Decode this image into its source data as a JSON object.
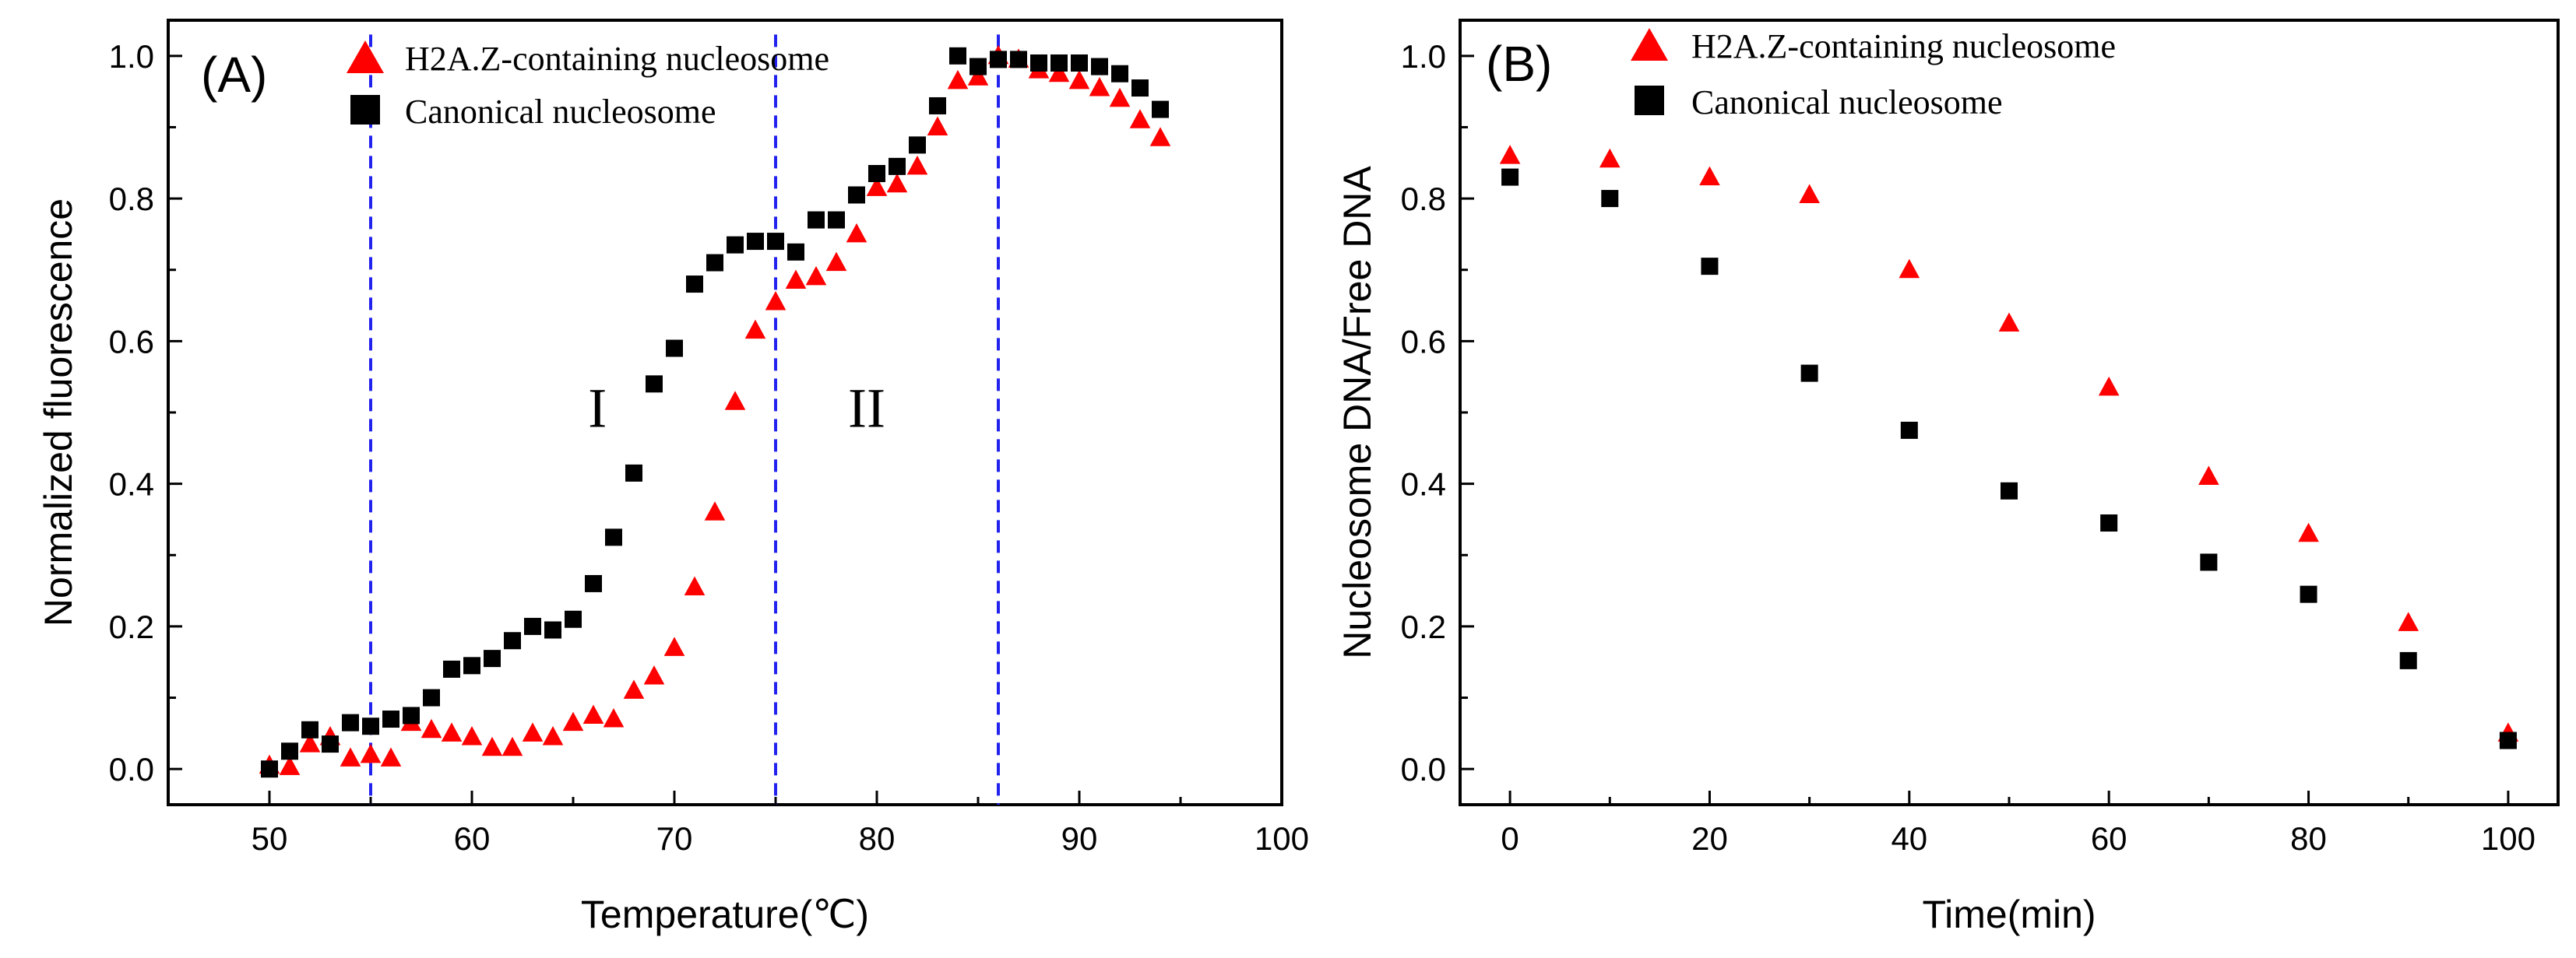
{
  "chart_data": [
    {
      "type": "scatter",
      "panel_label": "(A)",
      "title": "",
      "xlabel": "Temperature(℃)",
      "ylabel": "Normalized fluorescence",
      "xlim": [
        45,
        100
      ],
      "ylim": [
        -0.05,
        1.05
      ],
      "xticks": [
        "50",
        "60",
        "70",
        "80",
        "90",
        "100"
      ],
      "yticks": [
        "0.0",
        "0.2",
        "0.4",
        "0.6",
        "0.8",
        "1.0"
      ],
      "grid": false,
      "legend_position": "top-left",
      "reference_lines_x": [
        55,
        75,
        86
      ],
      "region_labels": [
        {
          "text": "I",
          "x": 66.2,
          "y": 0.48
        },
        {
          "text": "II",
          "x": 79.5,
          "y": 0.48
        }
      ],
      "series": [
        {
          "name": "H2A.Z-containing nucleosome",
          "marker": "triangle",
          "color": "#ff0000",
          "x": [
            50,
            51,
            52,
            53,
            54,
            55,
            56,
            57,
            58,
            59,
            60,
            61,
            62,
            63,
            64,
            65,
            66,
            67,
            68,
            69,
            70,
            71,
            72,
            73,
            74,
            75,
            76,
            77,
            78,
            79,
            80,
            81,
            82,
            83,
            84,
            85,
            86,
            87,
            88,
            89,
            90,
            91,
            92,
            93,
            94
          ],
          "y": [
            0.005,
            0.003,
            0.035,
            0.045,
            0.015,
            0.02,
            0.015,
            0.065,
            0.055,
            0.05,
            0.045,
            0.03,
            0.03,
            0.05,
            0.045,
            0.065,
            0.075,
            0.07,
            0.11,
            0.13,
            0.17,
            0.255,
            0.36,
            0.515,
            0.615,
            0.655,
            0.685,
            0.69,
            0.71,
            0.75,
            0.815,
            0.82,
            0.845,
            0.9,
            0.965,
            0.97,
            1.0,
            0.995,
            0.98,
            0.975,
            0.965,
            0.955,
            0.94,
            0.91,
            0.885
          ]
        },
        {
          "name": "Canonical nucleosome",
          "marker": "square",
          "color": "#000000",
          "x": [
            50,
            51,
            52,
            53,
            54,
            55,
            56,
            57,
            58,
            59,
            60,
            61,
            62,
            63,
            64,
            65,
            66,
            67,
            68,
            69,
            70,
            71,
            72,
            73,
            74,
            75,
            76,
            77,
            78,
            79,
            80,
            81,
            82,
            83,
            84,
            85,
            86,
            87,
            88,
            89,
            90,
            91,
            92,
            93,
            94
          ],
          "y": [
            0.0,
            0.025,
            0.055,
            0.035,
            0.065,
            0.06,
            0.07,
            0.075,
            0.1,
            0.14,
            0.145,
            0.155,
            0.18,
            0.2,
            0.195,
            0.21,
            0.26,
            0.325,
            0.415,
            0.54,
            0.59,
            0.68,
            0.71,
            0.735,
            0.74,
            0.74,
            0.725,
            0.77,
            0.77,
            0.805,
            0.835,
            0.845,
            0.875,
            0.93,
            1.0,
            0.985,
            0.995,
            0.995,
            0.99,
            0.99,
            0.99,
            0.985,
            0.975,
            0.955,
            0.925
          ]
        }
      ]
    },
    {
      "type": "scatter",
      "panel_label": "(B)",
      "title": "",
      "xlabel": "Time(min)",
      "ylabel": "Nucleosome DNA/Free DNA",
      "xlim": [
        -5,
        105
      ],
      "ylim": [
        -0.05,
        1.05
      ],
      "xticks": [
        "0",
        "20",
        "40",
        "60",
        "80",
        "100"
      ],
      "yticks": [
        "0.0",
        "0.2",
        "0.4",
        "0.6",
        "0.8",
        "1.0"
      ],
      "grid": false,
      "legend_position": "top-left",
      "series": [
        {
          "name": "H2A.Z-containing nucleosome",
          "marker": "triangle",
          "color": "#ff0000",
          "x": [
            0,
            10,
            20,
            30,
            40,
            50,
            60,
            70,
            80,
            90,
            100
          ],
          "y": [
            0.86,
            0.855,
            0.83,
            0.805,
            0.7,
            0.625,
            0.535,
            0.41,
            0.33,
            0.205,
            0.05
          ]
        },
        {
          "name": "Canonical nucleosome",
          "marker": "square",
          "color": "#000000",
          "x": [
            0,
            10,
            20,
            30,
            40,
            50,
            60,
            70,
            80,
            90,
            100
          ],
          "y": [
            0.83,
            0.8,
            0.705,
            0.555,
            0.475,
            0.39,
            0.345,
            0.29,
            0.245,
            0.152,
            0.04
          ]
        }
      ]
    }
  ]
}
